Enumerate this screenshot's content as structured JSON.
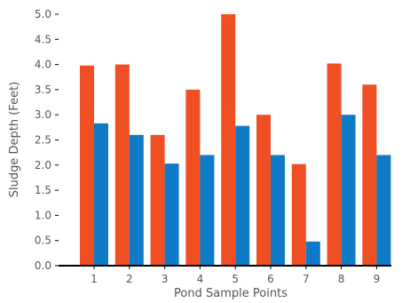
{
  "chart_data": {
    "type": "bar",
    "title": "",
    "xlabel": "Pond Sample Points",
    "ylabel": "Sludge Depth (Feet)",
    "categories": [
      "1",
      "2",
      "3",
      "4",
      "5",
      "6",
      "7",
      "8",
      "9"
    ],
    "ylim": [
      0,
      5
    ],
    "yticks": [
      "0.0",
      "0.5",
      "1.0",
      "1.5",
      "2.0",
      "2.5",
      "3.0",
      "3.5",
      "4.0",
      "4.5",
      "5.0"
    ],
    "grid": false,
    "legend": "none",
    "series": [
      {
        "values": [
          3.98,
          4.0,
          2.6,
          3.5,
          5.0,
          3.0,
          2.02,
          4.02,
          3.6
        ],
        "color": "#f04e23"
      },
      {
        "values": [
          2.83,
          2.6,
          2.03,
          2.2,
          2.78,
          2.2,
          0.48,
          3.0,
          2.2
        ],
        "color": "#0f7ac6"
      }
    ]
  }
}
